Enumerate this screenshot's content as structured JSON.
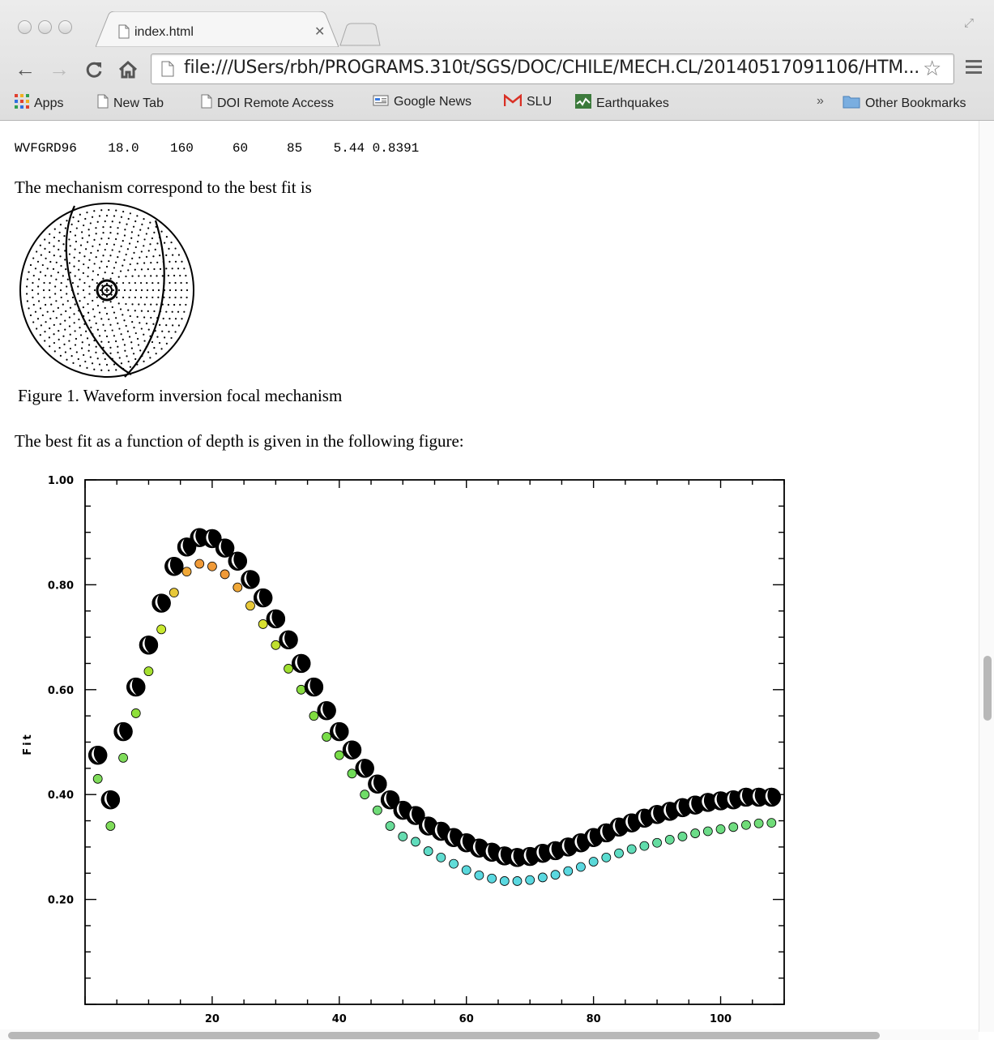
{
  "browser": {
    "tab_title": "index.html",
    "url": "file:///USers/rbh/PROGRAMS.310t/SGS/DOC/CHILE/MECH.CL/20140517091106/HTM...",
    "bookmarks": [
      {
        "label": "Apps",
        "icon": "apps-grid-icon"
      },
      {
        "label": "New Tab",
        "icon": "page-icon"
      },
      {
        "label": "DOI Remote Access",
        "icon": "page-icon"
      },
      {
        "label": "Google News",
        "icon": "news-icon"
      },
      {
        "label": "SLU",
        "icon": "gmail-icon"
      },
      {
        "label": "Earthquakes",
        "icon": "earthquake-icon"
      }
    ],
    "overflow_label": "»",
    "other_bookmarks": "Other Bookmarks"
  },
  "page": {
    "result_line": "WVFGRD96    18.0    160     60     85    5.44 0.8391",
    "mechanism_text": "The mechanism correspond to the best fit is",
    "figure1_caption": "Figure 1. Waveform inversion focal mechanism",
    "depth_text": "The best fit as a function of depth is given in the following figure:"
  },
  "chart_data": {
    "type": "scatter",
    "title": "",
    "xlabel": "",
    "ylabel": "Fit",
    "xlim": [
      0,
      110
    ],
    "ylim": [
      0,
      1.0
    ],
    "x_ticks": [
      20,
      40,
      60,
      80,
      100
    ],
    "y_ticks": [
      "1.00",
      "0.80",
      "0.60",
      "0.40",
      "0.20"
    ],
    "grid": false,
    "series": [
      {
        "marker": "focal-mechanism-beachball",
        "x": [
          2,
          4,
          6,
          8,
          10,
          12,
          14,
          16,
          18,
          20,
          22,
          24,
          26,
          28,
          30,
          32,
          34,
          36,
          38,
          40,
          42,
          44,
          46,
          48,
          50,
          52,
          54,
          56,
          58,
          60,
          62,
          64,
          66,
          68,
          70,
          72,
          74,
          76,
          78,
          80,
          82,
          84,
          86,
          88,
          90,
          92,
          94,
          96,
          98,
          100,
          102,
          104,
          106,
          108
        ],
        "y": [
          0.475,
          0.39,
          0.52,
          0.605,
          0.685,
          0.765,
          0.835,
          0.872,
          0.89,
          0.888,
          0.87,
          0.845,
          0.81,
          0.775,
          0.735,
          0.695,
          0.65,
          0.605,
          0.56,
          0.52,
          0.485,
          0.45,
          0.42,
          0.39,
          0.37,
          0.36,
          0.34,
          0.33,
          0.318,
          0.308,
          0.298,
          0.29,
          0.283,
          0.28,
          0.282,
          0.288,
          0.293,
          0.3,
          0.308,
          0.318,
          0.327,
          0.338,
          0.346,
          0.355,
          0.362,
          0.368,
          0.375,
          0.38,
          0.385,
          0.388,
          0.39,
          0.395,
          0.395,
          0.395
        ]
      },
      {
        "marker": "colored-circle",
        "x": [
          2,
          4,
          6,
          8,
          10,
          12,
          14,
          16,
          18,
          20,
          22,
          24,
          26,
          28,
          30,
          32,
          34,
          36,
          38,
          40,
          42,
          44,
          46,
          48,
          50,
          52,
          54,
          56,
          58,
          60,
          62,
          64,
          66,
          68,
          70,
          72,
          74,
          76,
          78,
          80,
          82,
          84,
          86,
          88,
          90,
          92,
          94,
          96,
          98,
          100,
          102,
          104,
          106,
          108
        ],
        "y": [
          0.43,
          0.34,
          0.47,
          0.555,
          0.635,
          0.715,
          0.785,
          0.825,
          0.84,
          0.835,
          0.82,
          0.795,
          0.76,
          0.725,
          0.685,
          0.64,
          0.6,
          0.55,
          0.51,
          0.475,
          0.44,
          0.4,
          0.37,
          0.34,
          0.32,
          0.31,
          0.292,
          0.28,
          0.268,
          0.256,
          0.246,
          0.24,
          0.235,
          0.235,
          0.237,
          0.242,
          0.247,
          0.254,
          0.262,
          0.272,
          0.28,
          0.288,
          0.296,
          0.302,
          0.308,
          0.314,
          0.32,
          0.326,
          0.33,
          0.334,
          0.338,
          0.342,
          0.345,
          0.346
        ],
        "colors": [
          "#7fdc5a",
          "#7fdc5a",
          "#7fdc5a",
          "#8fe03a",
          "#a5e030",
          "#c8e830",
          "#e8c838",
          "#f0a838",
          "#f09a38",
          "#f09a38",
          "#f09a38",
          "#f0a838",
          "#e8c838",
          "#d8e030",
          "#c0e030",
          "#a0e030",
          "#88dc40",
          "#80dc40",
          "#78dc48",
          "#78dc48",
          "#70dc58",
          "#70dc68",
          "#70dc78",
          "#68dc98",
          "#66dcb0",
          "#60dcbc",
          "#60dcc8",
          "#60dcd0",
          "#60dcd8",
          "#5ad8dc",
          "#5ad8e0",
          "#5ad8e0",
          "#5ad8e0",
          "#5ad8e0",
          "#5ad8e0",
          "#5ad8e0",
          "#5ad8e0",
          "#5ad8e0",
          "#5ad8e0",
          "#5ad8d8",
          "#5adcd0",
          "#5edcc4",
          "#60dcb8",
          "#60dcac",
          "#64dca0",
          "#68dc98",
          "#68dc90",
          "#6cdc88",
          "#6cdc88",
          "#6cdc80",
          "#70dc80",
          "#70dc78",
          "#70dc78",
          "#70dc78"
        ]
      }
    ]
  }
}
